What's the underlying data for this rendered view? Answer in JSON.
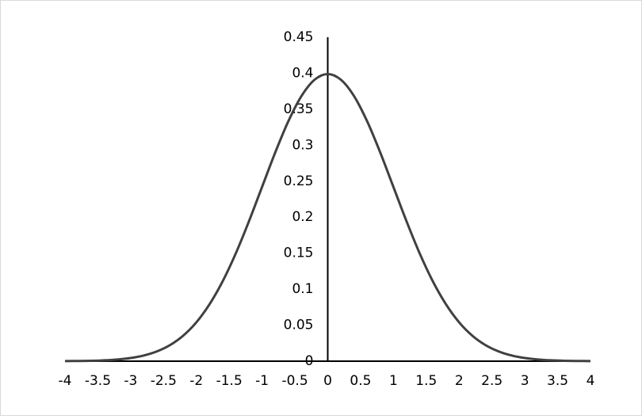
{
  "chart_data": {
    "type": "line",
    "x": [
      -4,
      -3.8,
      -3.6,
      -3.4,
      -3.2,
      -3,
      -2.8,
      -2.6,
      -2.4,
      -2.2,
      -2,
      -1.8,
      -1.6,
      -1.4,
      -1.2,
      -1,
      -0.8,
      -0.6,
      -0.4,
      -0.2,
      0,
      0.2,
      0.4,
      0.6,
      0.8,
      1,
      1.2,
      1.4,
      1.6,
      1.8,
      2,
      2.2,
      2.4,
      2.6,
      2.8,
      3,
      3.2,
      3.4,
      3.6,
      3.8,
      4
    ],
    "values": [
      0.0001,
      0.0003,
      0.0006,
      0.0012,
      0.0024,
      0.0044,
      0.0079,
      0.0136,
      0.0224,
      0.0355,
      0.054,
      0.079,
      0.1109,
      0.1497,
      0.1942,
      0.242,
      0.2897,
      0.3332,
      0.3683,
      0.391,
      0.3989,
      0.391,
      0.3683,
      0.3332,
      0.2897,
      0.242,
      0.1942,
      0.1497,
      0.1109,
      0.079,
      0.054,
      0.0355,
      0.0224,
      0.0136,
      0.0079,
      0.0044,
      0.0024,
      0.0012,
      0.0006,
      0.0003,
      0.0001
    ],
    "color": "#404040",
    "xlim": [
      -4,
      4
    ],
    "xticks": [
      -4,
      -3.5,
      -3,
      -2.5,
      -2,
      -1.5,
      -1,
      -0.5,
      0,
      0.5,
      1,
      1.5,
      2,
      2.5,
      3,
      3.5,
      4
    ],
    "ylim": [
      0,
      0.45
    ],
    "yticks": [
      0,
      0.05,
      0.1,
      0.15,
      0.2,
      0.25,
      0.3,
      0.35,
      0.4,
      0.45
    ],
    "grid": false
  }
}
